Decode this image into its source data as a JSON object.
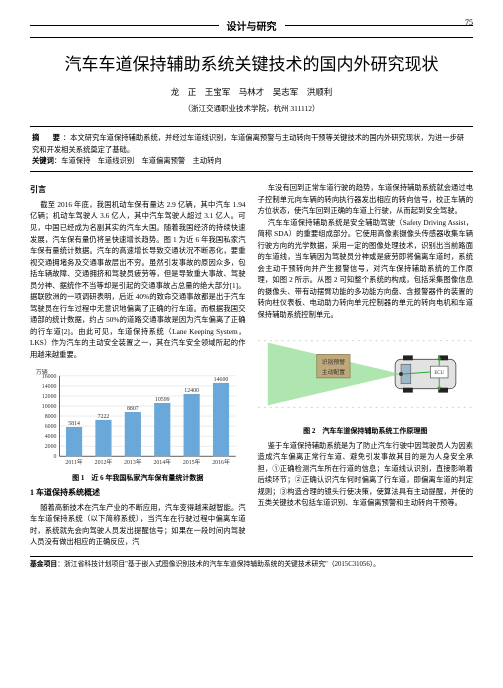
{
  "header": {
    "section_label": "设计与研究",
    "page_number": "75"
  },
  "title": "汽车车道保持辅助系统关键技术的国内外研究现状",
  "authors": "龙　正　王宝军　马林才　吴志军　洪顺利",
  "affiliation": "（浙江交通职业技术学院，杭州 311112）",
  "abstract": {
    "label": "摘　要",
    "text": "：本文研究车道保持辅助系统，并经过车道线识别，车道偏离预警与主动转向干预等关键技术的国内外研究现状，为进一步研究和开发相关系统奠定了基础。",
    "kw_label": "关键词",
    "kw_text": "：车道保持　车道线识别　车道偏离预警　主动转向"
  },
  "left": {
    "intro_head": "引言",
    "p1": "截至 2016 年底，我国机动车保有量达 2.9 亿辆，其中汽车 1.94 亿辆；机动车驾驶人 3.6 亿人，其中汽车驾驶人超过 3.1 亿人。可见，中国已经成为名副其实的汽车大国。随着我国经济的持续快速发展，汽车保有量仍将呈快速增长趋势。图 1 为近 6 年我国私家汽车保有量统计数据。汽车的高速增长导致交通状况不断恶化，要重视交通拥堵务及交通事故层出不穷。虽然引发事故的原因众多，包括车辆故障、交通拥挤和驾驶员疲劳等，但是导致重大事故、驾驶员分神、据统作不当等却是引起的交通事故占总量的绝大部分[1]。据联欧洲的一项调研表明，后近 40%的致命交通事故都是出于汽车驾驶员在行车过程中无意识地偏离了正确的行车道。而根据我国交通部的统计数据，约占 50%的道路交通事故是因为汽车偏离了正确的行车道[2]。由此可见，车道保持系统（Lane Keeping System，LKS）作为汽车的主动安全装置之一，其在汽车安全领域所起的作用越来越重要。",
    "chart": {
      "type": "bar",
      "y_title": "万辆",
      "categories": [
        "2011年",
        "2012年",
        "2013年",
        "2014年",
        "2015年",
        "2016年"
      ],
      "values": [
        5814,
        7222,
        8807,
        10599,
        12400,
        14600
      ],
      "value_labels": [
        "5814",
        "7222",
        "8807",
        "10599",
        "12400",
        "14600"
      ],
      "y_ticks": [
        0,
        2000,
        4000,
        6000,
        8000,
        10000,
        12000,
        14000,
        16000
      ],
      "bar_color": "#69a8d8",
      "bg": "#ffffff",
      "grid_color": "#cccccc",
      "axis_color": "#000000",
      "label_fontsize": 6
    },
    "fig1_caption": "图 1　近 6 年我国私家汽车保有量统计数据",
    "sec1_head": "1 车道保持系统概述",
    "p2": "随着高新技术在汽车产业的不断应用，汽车变得越来越智能。汽车车道保持系统（以下简称系统），当汽车在行驶过程中偏离车道时，系统就先会向驾驶人员发出提醒信号；如果在一段时间内驾驶人员没有做出相应的正确反应，汽"
  },
  "right": {
    "p1": "车没有回到正常车道行驶的趋势，车道保持辅助系统就会通过电子控制单元向车辆的转向执行器发出相应的转向信号，校正车辆的方位状态，使汽车回到正确的车道上行驶，从而起到安全驾驶。",
    "p2": "汽车车道保持辅助系统是安全辅助驾驶（Safety Driving Assist，简称 SDA）的重要组成部分。它使用高像素摄像头传感器收集车辆行驶方向的光学数据，采用一定的图像处理技术，识别出当前路面的车道线，当车辆因为驾驶员分神或是疲劳即将偏离车道时，系统会主动干预转向并产生报警信号，对汽车保持辅助系统的工作原理，如图 2 所示。从图 2 可知整个系统的构成，包括采集图像信息的摄像头、带有动摆臂功能的多功能方向盘、含报警器件的装置的转向柱仪表板、电动助力转向单元控制器的单元的转向电机和车道保持辅助系统控制单元。",
    "diagram": {
      "caption_box_text": "识别预警主动配置",
      "ecu_label": "ECU",
      "cone_color": "#79d67b",
      "cone_opacity": 0.6,
      "lane_color": "#cccccc",
      "car_body": "#e2e2e2",
      "car_outline": "#444444",
      "box_fill": "#bfa97a",
      "box_stroke": "#7a6a3e",
      "arrow_color": "#2baa2b",
      "bg": "#ffffff"
    },
    "fig2_caption": "图 2　汽车车道保持辅助系统工作原理图",
    "p3": "鉴于车道保持辅助系统是为了防止汽车行驶中因驾驶员人为因素造成汽车偏离正常行车道、避免引发事故其目的是为人身安全承担，①正确检测汽车所在行道的信息；车道线认识别，直接影响着后续环节；②正确认识汽车何时偏离了行车道，即偏离车道的判定规则；③构造合理的镜头行使决策，使算法具有主动提醒，并使的五类关键技术包括车道识别、车道偏离预警和主动转向干预等。"
  },
  "footer": {
    "label": "基金项目",
    "text": "：浙江省科技计划项目\"基于嵌入式图像识别技术的汽车车道保持辅助系统的关键技术研究\"（2015C31056）。"
  }
}
